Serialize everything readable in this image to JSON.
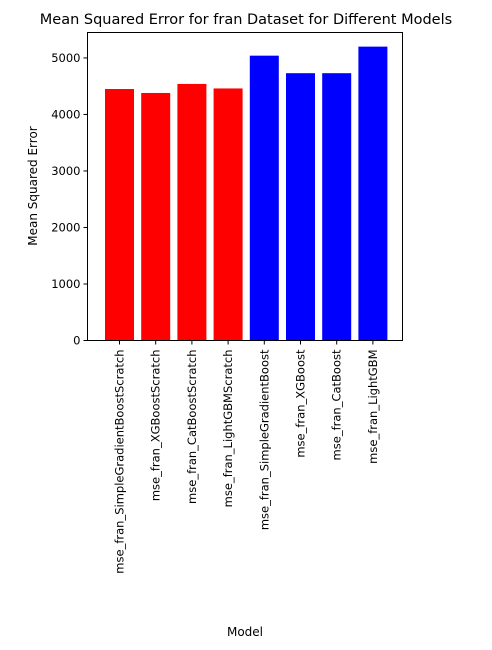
{
  "chart_data": {
    "type": "bar",
    "title": "Mean Squared Error for fran Dataset for Different Models",
    "xlabel": "Model",
    "ylabel": "Mean Squared Error",
    "ylim": [
      0,
      5450
    ],
    "yticks": [
      0,
      1000,
      2000,
      3000,
      4000,
      5000
    ],
    "grid": false,
    "categories": [
      "mse_fran_SimpleGradientBoostScratch",
      "mse_fran_XGBoostScratch",
      "mse_fran_CatBoostScratch",
      "mse_fran_LightGBMScratch",
      "mse_fran_SimpleGradientBoost",
      "mse_fran_XGBoost",
      "mse_fran_CatBoost",
      "mse_fran_LightGBM"
    ],
    "values": [
      4450,
      4380,
      4540,
      4460,
      5040,
      4730,
      4730,
      5200
    ],
    "bar_colors": [
      "#ff0000",
      "#ff0000",
      "#ff0000",
      "#ff0000",
      "#0000ff",
      "#0000ff",
      "#0000ff",
      "#0000ff"
    ]
  }
}
